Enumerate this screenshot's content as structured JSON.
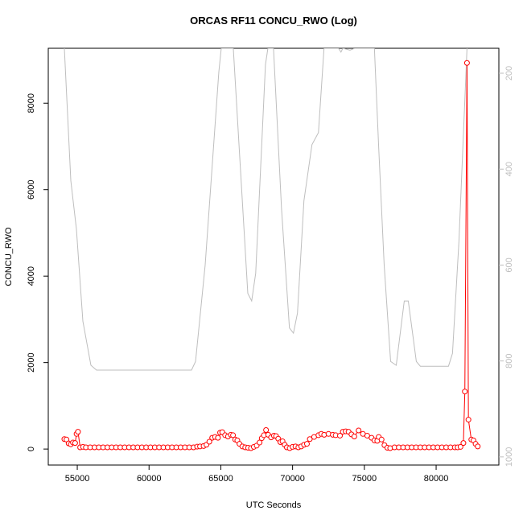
{
  "chart_data": {
    "type": "line",
    "title": "ORCAS RF11 CONCU_RWO (Log)",
    "xlabel": "UTC Seconds",
    "ylabel": "CONCU_RWO",
    "xlim": [
      52980,
      84370
    ],
    "xticks": [
      55000,
      60000,
      65000,
      70000,
      75000,
      80000
    ],
    "ylim": [
      -370,
      9270
    ],
    "yticks": [
      0,
      2000,
      4000,
      6000,
      8000
    ],
    "y2lim": [
      1017,
      148
    ],
    "y2ticks": [
      200,
      400,
      600,
      800,
      1000
    ],
    "series": [
      {
        "color": "#ff0000",
        "marker": "circle",
        "x": [
          54100,
          54250,
          54400,
          54550,
          54700,
          54850,
          54950,
          55050,
          55200,
          55400,
          55600,
          55900,
          56200,
          56500,
          56800,
          57100,
          57400,
          57700,
          58000,
          58300,
          58600,
          58900,
          59200,
          59500,
          59800,
          60100,
          60400,
          60700,
          61000,
          61300,
          61600,
          61900,
          62200,
          62500,
          62800,
          63100,
          63350,
          63550,
          63800,
          64000,
          64200,
          64400,
          64600,
          64800,
          64950,
          65100,
          65300,
          65500,
          65700,
          65850,
          66000,
          66150,
          66300,
          66500,
          66700,
          66900,
          67100,
          67300,
          67500,
          67700,
          67850,
          68000,
          68150,
          68300,
          68500,
          68700,
          68850,
          69000,
          69150,
          69300,
          69450,
          69600,
          69800,
          70000,
          70200,
          70400,
          70600,
          70800,
          71000,
          71200,
          71500,
          71800,
          72000,
          72200,
          72500,
          72800,
          73000,
          73300,
          73500,
          73700,
          73900,
          74100,
          74300,
          74600,
          74900,
          75200,
          75500,
          75700,
          75900,
          76000,
          76200,
          76400,
          76600,
          76800,
          77100,
          77400,
          77700,
          78000,
          78300,
          78600,
          78900,
          79200,
          79500,
          79800,
          80100,
          80400,
          80700,
          81000,
          81300,
          81500,
          81700,
          81900,
          82000,
          82150,
          82250,
          82450,
          82600,
          82750,
          82900
        ],
        "values": [
          230,
          220,
          130,
          110,
          150,
          140,
          350,
          400,
          40,
          50,
          40,
          40,
          40,
          40,
          40,
          40,
          40,
          40,
          40,
          40,
          40,
          40,
          40,
          40,
          40,
          40,
          40,
          40,
          40,
          40,
          40,
          40,
          40,
          40,
          40,
          40,
          55,
          60,
          70,
          100,
          170,
          260,
          280,
          260,
          380,
          390,
          320,
          290,
          330,
          320,
          220,
          200,
          120,
          60,
          40,
          30,
          20,
          50,
          80,
          150,
          250,
          320,
          440,
          330,
          270,
          310,
          300,
          240,
          160,
          180,
          100,
          40,
          20,
          50,
          60,
          40,
          60,
          100,
          120,
          230,
          280,
          320,
          350,
          330,
          350,
          330,
          320,
          310,
          400,
          410,
          400,
          340,
          290,
          430,
          350,
          310,
          260,
          200,
          190,
          280,
          220,
          90,
          30,
          20,
          40,
          40,
          40,
          40,
          40,
          40,
          40,
          40,
          40,
          40,
          40,
          40,
          40,
          40,
          40,
          40,
          50,
          140,
          1330,
          8930,
          680,
          220,
          200,
          120,
          60
        ]
      },
      {
        "color": "#bebebe",
        "axis": "y2",
        "x": [
          54100,
          54550,
          54940,
          55390,
          55950,
          56340,
          62960,
          63240,
          63910,
          64860,
          65030,
          65870,
          66200,
          66880,
          67150,
          67430,
          68110,
          68280,
          68670,
          69230,
          69780,
          70060,
          70340,
          70790,
          71350,
          71800,
          72190,
          73200,
          73370,
          73500,
          74000,
          74320,
          75700,
          75990,
          76380,
          76830,
          77220,
          77780,
          78060,
          78620,
          78900,
          80860,
          81140,
          81590,
          82150
        ],
        "values": [
          148,
          424,
          525,
          717,
          809,
          819,
          819,
          801,
          600,
          198,
          148,
          148,
          315,
          659,
          675,
          617,
          182,
          148,
          148,
          483,
          731,
          742,
          700,
          466,
          349,
          324,
          148,
          148,
          156,
          148,
          152,
          148,
          148,
          349,
          600,
          801,
          809,
          675,
          675,
          801,
          811,
          811,
          784,
          550,
          148
        ]
      }
    ]
  }
}
